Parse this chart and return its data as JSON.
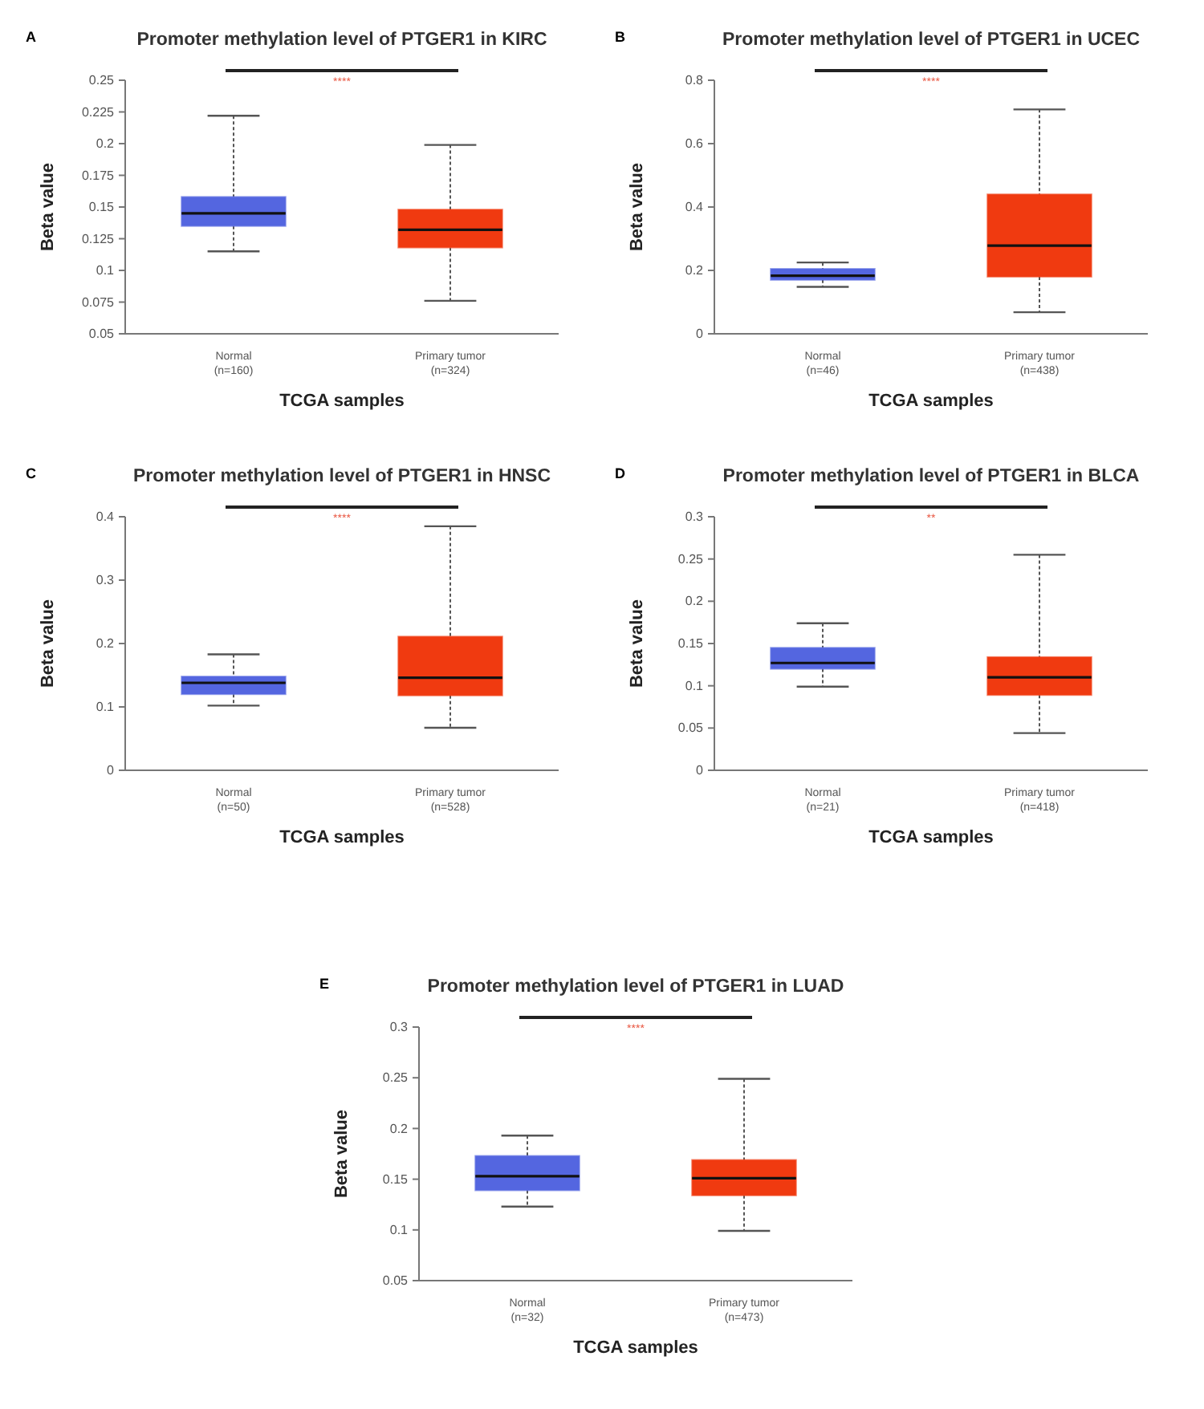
{
  "chart_data": [
    {
      "type": "box",
      "title": "Promoter methylation level of PTGER1 in KIRC",
      "xlabel": "TCGA samples",
      "ylabel": "Beta value",
      "categories": [
        "Normal\n(n=160)",
        "Primary tumor\n(n=324)"
      ],
      "colors": [
        "#5466e0",
        "#f03a10"
      ],
      "ylim": [
        0.05,
        0.25
      ],
      "yticks": [
        0.05,
        0.075,
        0.1,
        0.125,
        0.15,
        0.175,
        0.2,
        0.225,
        0.25
      ],
      "grid": false,
      "annotations": [
        "A",
        "****"
      ],
      "boxes": [
        {
          "low": 0.115,
          "q1": 0.135,
          "median": 0.145,
          "q3": 0.158,
          "high": 0.222
        },
        {
          "low": 0.076,
          "q1": 0.118,
          "median": 0.132,
          "q3": 0.148,
          "high": 0.199
        }
      ]
    },
    {
      "type": "box",
      "title": "Promoter methylation level of PTGER1 in UCEC",
      "xlabel": "TCGA samples",
      "ylabel": "Beta value",
      "categories": [
        "Normal\n(n=46)",
        "Primary tumor\n(n=438)"
      ],
      "colors": [
        "#5466e0",
        "#f03a10"
      ],
      "ylim": [
        0,
        0.8
      ],
      "yticks": [
        0,
        0.2,
        0.4,
        0.6,
        0.8
      ],
      "grid": false,
      "annotations": [
        "B",
        "****"
      ],
      "boxes": [
        {
          "low": 0.148,
          "q1": 0.17,
          "median": 0.183,
          "q3": 0.205,
          "high": 0.225
        },
        {
          "low": 0.068,
          "q1": 0.18,
          "median": 0.278,
          "q3": 0.44,
          "high": 0.708
        }
      ]
    },
    {
      "type": "box",
      "title": "Promoter methylation level of PTGER1 in HNSC",
      "xlabel": "TCGA samples",
      "ylabel": "Beta value",
      "categories": [
        "Normal\n(n=50)",
        "Primary tumor\n(n=528)"
      ],
      "colors": [
        "#5466e0",
        "#f03a10"
      ],
      "ylim": [
        0,
        0.4
      ],
      "yticks": [
        0,
        0.1,
        0.2,
        0.3,
        0.4
      ],
      "grid": false,
      "annotations": [
        "C",
        "****"
      ],
      "boxes": [
        {
          "low": 0.102,
          "q1": 0.12,
          "median": 0.138,
          "q3": 0.148,
          "high": 0.183
        },
        {
          "low": 0.067,
          "q1": 0.118,
          "median": 0.146,
          "q3": 0.211,
          "high": 0.385
        }
      ]
    },
    {
      "type": "box",
      "title": "Promoter methylation level of PTGER1 in BLCA",
      "xlabel": "TCGA samples",
      "ylabel": "Beta value",
      "categories": [
        "Normal\n(n=21)",
        "Primary tumor\n(n=418)"
      ],
      "colors": [
        "#5466e0",
        "#f03a10"
      ],
      "ylim": [
        0,
        0.3
      ],
      "yticks": [
        0,
        0.05,
        0.1,
        0.15,
        0.2,
        0.25,
        0.3
      ],
      "grid": false,
      "annotations": [
        "D",
        "**"
      ],
      "boxes": [
        {
          "low": 0.099,
          "q1": 0.12,
          "median": 0.127,
          "q3": 0.145,
          "high": 0.174
        },
        {
          "low": 0.044,
          "q1": 0.089,
          "median": 0.11,
          "q3": 0.134,
          "high": 0.255
        }
      ]
    },
    {
      "type": "box",
      "title": "Promoter methylation level of PTGER1 in LUAD",
      "xlabel": "TCGA samples",
      "ylabel": "Beta value",
      "categories": [
        "Normal\n(n=32)",
        "Primary tumor\n(n=473)"
      ],
      "colors": [
        "#5466e0",
        "#f03a10"
      ],
      "ylim": [
        0.05,
        0.3
      ],
      "yticks": [
        0.05,
        0.1,
        0.15,
        0.2,
        0.25,
        0.3
      ],
      "grid": false,
      "annotations": [
        "E",
        "****"
      ],
      "boxes": [
        {
          "low": 0.123,
          "q1": 0.139,
          "median": 0.153,
          "q3": 0.173,
          "high": 0.193
        },
        {
          "low": 0.099,
          "q1": 0.134,
          "median": 0.151,
          "q3": 0.169,
          "high": 0.249
        }
      ]
    }
  ]
}
